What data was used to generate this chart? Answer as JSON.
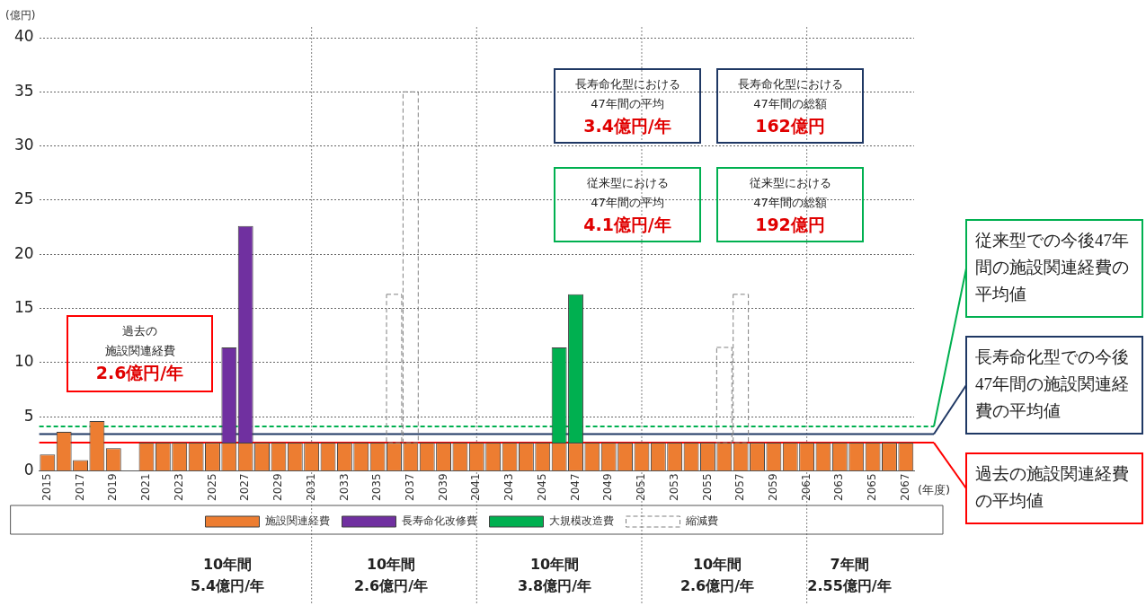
{
  "chart_data": {
    "type": "bar",
    "stacked": true,
    "ylabel": "(億円)",
    "xlabel": "(年度)",
    "categories": [
      "2015",
      null,
      "2017",
      null,
      "2019",
      null,
      "2021",
      null,
      "2023",
      null,
      "2025",
      null,
      "2027",
      null,
      "2029",
      null,
      "2031",
      null,
      "2033",
      null,
      "2035",
      null,
      "2037",
      null,
      "2039",
      null,
      "2041",
      null,
      "2043",
      null,
      "2045",
      null,
      "2047",
      null,
      "2049",
      null,
      "2051",
      null,
      "2053",
      null,
      "2055",
      null,
      "2057",
      null,
      "2059",
      null,
      "2061",
      null,
      "2063",
      null,
      "2065",
      null,
      "2067"
    ],
    "series": [
      {
        "name": "施設関連経費",
        "color": "#ed7d31",
        "values": [
          1.5,
          3.6,
          1.0,
          4.6,
          2.1,
          null,
          2.6,
          2.6,
          2.6,
          2.6,
          2.6,
          2.6,
          2.6,
          2.6,
          2.6,
          2.6,
          2.6,
          2.6,
          2.6,
          2.6,
          2.6,
          2.6,
          2.6,
          2.6,
          2.6,
          2.6,
          2.6,
          2.6,
          2.6,
          2.6,
          2.6,
          2.6,
          2.6,
          2.6,
          2.6,
          2.6,
          2.6,
          2.6,
          2.6,
          2.6,
          2.6,
          2.6,
          2.6,
          2.6,
          2.6,
          2.6,
          2.6,
          2.6,
          2.6,
          2.6,
          2.6,
          2.6,
          2.6
        ]
      },
      {
        "name": "長寿命化改修費",
        "color": "#7030a0",
        "values": [
          null,
          null,
          null,
          null,
          null,
          null,
          null,
          null,
          null,
          null,
          null,
          8.8,
          20.0,
          null,
          null,
          null,
          null,
          null,
          null,
          null,
          null,
          null,
          null,
          null,
          null,
          null,
          null,
          null,
          null,
          null,
          null,
          null,
          null,
          null,
          null,
          null,
          null,
          null,
          null,
          null,
          null,
          null,
          null,
          null,
          null,
          null,
          null,
          null,
          null,
          null,
          null,
          null,
          null
        ]
      },
      {
        "name": "大規模改造費",
        "color": "#00b050",
        "values": [
          null,
          null,
          null,
          null,
          null,
          null,
          null,
          null,
          null,
          null,
          null,
          null,
          null,
          null,
          null,
          null,
          null,
          null,
          null,
          null,
          null,
          null,
          null,
          null,
          null,
          null,
          null,
          null,
          null,
          null,
          null,
          8.8,
          13.7,
          null,
          null,
          null,
          null,
          null,
          null,
          null,
          null,
          null,
          null,
          null,
          null,
          null,
          null,
          null,
          null,
          null,
          null,
          null,
          null
        ]
      },
      {
        "name": "縮減費",
        "color": "#808080",
        "line_style": "dashed",
        "values": [
          null,
          null,
          null,
          null,
          null,
          null,
          null,
          null,
          null,
          null,
          null,
          null,
          null,
          null,
          null,
          null,
          null,
          null,
          null,
          null,
          null,
          13.7,
          32.4,
          null,
          null,
          null,
          null,
          null,
          null,
          null,
          null,
          null,
          null,
          null,
          null,
          null,
          null,
          null,
          null,
          null,
          null,
          8.8,
          13.7,
          null,
          null,
          null,
          null,
          null,
          null,
          null,
          null,
          null,
          null
        ]
      }
    ],
    "ylim": [
      0,
      40
    ],
    "yticks": [
      0,
      5,
      10,
      15,
      20,
      25,
      30,
      35,
      40
    ],
    "grid": "y",
    "legend": "bottom",
    "ref_lines": [
      {
        "axis": "y",
        "value": 4.1,
        "label": "従来型での今後47年間の施設関連経費の平均値",
        "color": "#00b050",
        "line_style": "dashed"
      },
      {
        "axis": "y",
        "value": 3.4,
        "label": "長寿命化型での今後47年間の施設関連経費の平均値",
        "color": "#1f3864",
        "line_style": "solid"
      },
      {
        "axis": "y",
        "value": 2.6,
        "label": "過去の施設関連経費の平均値",
        "color": "#ff0000",
        "line_style": "solid"
      },
      {
        "axis": "x",
        "value": "2031",
        "color": "#808080",
        "line_style": "dotted"
      },
      {
        "axis": "x",
        "value": "2041",
        "color": "#808080",
        "line_style": "dotted"
      },
      {
        "axis": "x",
        "value": "2051",
        "color": "#808080",
        "line_style": "dotted"
      },
      {
        "axis": "x",
        "value": "2061",
        "color": "#808080",
        "line_style": "dotted"
      }
    ],
    "annotations": [
      "過去の施設関連経費",
      "2.6億円/年",
      "長寿命化型における47年間の平均",
      "3.4億円/年",
      "長寿命化型における47年間の総額",
      "162億円",
      "従来型における47年間の平均",
      "4.1億円/年",
      "従来型における47年間の総額",
      "192億円",
      "10年間",
      "5.4億円/年",
      "10年間",
      "2.6億円/年",
      "10年間",
      "3.8億円/年",
      "10年間",
      "2.6億円/年",
      "7年間",
      "2.55億円/年"
    ]
  }
}
